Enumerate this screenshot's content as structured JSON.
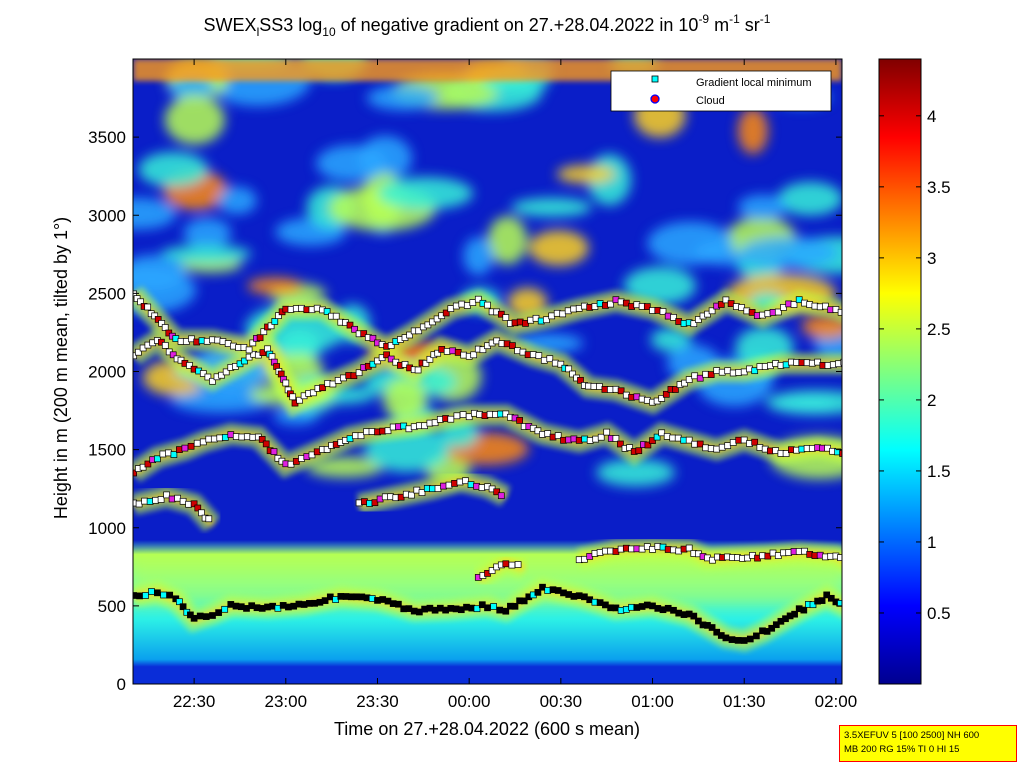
{
  "chart_data": {
    "type": "heatmap",
    "title_parts": {
      "prefix": "SWEX",
      "sub_l": "l",
      "mid": "SS3 log",
      "sub_10": "10",
      "text": " of negative gradient on 27.+28.04.2022 in 10",
      "sup_m9": "-9",
      "unit_m": " m",
      "sup_m1a": "-1",
      "unit_sr": " sr",
      "sup_m1b": "-1"
    },
    "xlabel": "Time on 27.+28.04.2022 (600 s mean)",
    "ylabel": "Height in m (200 m mean, tilted by 1°)",
    "xlim_hours": [
      22.1667,
      26.0333
    ],
    "x_ticks": [
      {
        "value": 22.5,
        "label": "22:30"
      },
      {
        "value": 23.0,
        "label": "23:00"
      },
      {
        "value": 23.5,
        "label": "23:30"
      },
      {
        "value": 24.0,
        "label": "00:00"
      },
      {
        "value": 24.5,
        "label": "00:30"
      },
      {
        "value": 25.0,
        "label": "01:00"
      },
      {
        "value": 25.5,
        "label": "01:30"
      },
      {
        "value": 26.0,
        "label": "02:00"
      }
    ],
    "ylim": [
      0,
      4000
    ],
    "y_ticks": [
      0,
      500,
      1000,
      1500,
      2000,
      2500,
      3000,
      3500
    ],
    "colorbar": {
      "range": [
        0,
        4.4
      ],
      "ticks": [
        "0.5",
        "1",
        "1.5",
        "2",
        "2.5",
        "3",
        "3.5",
        "4"
      ],
      "colormap": "jet"
    },
    "legend": {
      "position": "top-right",
      "entries": [
        {
          "label": "Gradient local minimum",
          "marker": "square",
          "color": "#00ffff"
        },
        {
          "label": "Cloud",
          "marker": "circle",
          "color": "#ff0000",
          "edge": "#0000ff"
        }
      ]
    },
    "layers_m": [
      {
        "name": "boundary",
        "points": [
          [
            22.17,
            560
          ],
          [
            22.3,
            590
          ],
          [
            22.4,
            540
          ],
          [
            22.5,
            410
          ],
          [
            22.6,
            450
          ],
          [
            22.7,
            500
          ],
          [
            22.9,
            490
          ],
          [
            23.1,
            510
          ],
          [
            23.3,
            560
          ],
          [
            23.5,
            540
          ],
          [
            23.7,
            470
          ],
          [
            23.9,
            480
          ],
          [
            24.1,
            500
          ],
          [
            24.2,
            470
          ],
          [
            24.3,
            540
          ],
          [
            24.4,
            610
          ],
          [
            24.6,
            560
          ],
          [
            24.8,
            480
          ],
          [
            25.0,
            500
          ],
          [
            25.2,
            440
          ],
          [
            25.4,
            300
          ],
          [
            25.5,
            280
          ],
          [
            25.6,
            330
          ],
          [
            25.8,
            470
          ],
          [
            25.95,
            560
          ],
          [
            26.1,
            460
          ],
          [
            26.2,
            390
          ]
        ]
      },
      {
        "name": "layer-850",
        "points": [
          [
            24.05,
            670
          ],
          [
            24.2,
            780
          ],
          [
            24.3,
            740
          ]
        ]
      },
      {
        "name": "layer-850b",
        "points": [
          [
            24.6,
            800
          ],
          [
            24.8,
            860
          ],
          [
            25.0,
            870
          ],
          [
            25.2,
            860
          ],
          [
            25.3,
            800
          ],
          [
            25.6,
            820
          ],
          [
            25.8,
            840
          ],
          [
            26.0,
            820
          ],
          [
            26.2,
            680
          ]
        ]
      },
      {
        "name": "layer-1200",
        "points": [
          [
            22.17,
            1150
          ],
          [
            22.35,
            1200
          ],
          [
            22.5,
            1150
          ],
          [
            22.6,
            1020
          ]
        ]
      },
      {
        "name": "layer-1200b",
        "points": [
          [
            23.4,
            1150
          ],
          [
            23.6,
            1200
          ],
          [
            23.8,
            1250
          ],
          [
            23.95,
            1300
          ],
          [
            24.1,
            1260
          ],
          [
            24.2,
            1200
          ]
        ]
      },
      {
        "name": "layer-1450",
        "points": [
          [
            22.17,
            1350
          ],
          [
            22.3,
            1450
          ],
          [
            22.45,
            1500
          ],
          [
            22.55,
            1550
          ],
          [
            22.7,
            1600
          ],
          [
            22.85,
            1580
          ],
          [
            23.0,
            1400
          ],
          [
            23.2,
            1500
          ],
          [
            23.35,
            1580
          ],
          [
            23.5,
            1620
          ],
          [
            23.7,
            1650
          ],
          [
            23.9,
            1700
          ],
          [
            24.0,
            1720
          ],
          [
            24.2,
            1720
          ],
          [
            24.4,
            1600
          ],
          [
            24.6,
            1550
          ],
          [
            24.75,
            1600
          ],
          [
            24.9,
            1480
          ],
          [
            25.05,
            1600
          ],
          [
            25.2,
            1550
          ],
          [
            25.35,
            1500
          ],
          [
            25.5,
            1560
          ],
          [
            25.7,
            1480
          ],
          [
            25.9,
            1510
          ],
          [
            26.2,
            1450
          ]
        ]
      },
      {
        "name": "layer-2000",
        "points": [
          [
            22.17,
            2100
          ],
          [
            22.3,
            2200
          ],
          [
            22.45,
            2050
          ],
          [
            22.6,
            1950
          ],
          [
            22.75,
            2050
          ],
          [
            22.9,
            2150
          ],
          [
            23.05,
            1800
          ],
          [
            23.2,
            1900
          ],
          [
            23.4,
            2000
          ],
          [
            23.55,
            2100
          ],
          [
            23.7,
            2000
          ],
          [
            23.85,
            2150
          ],
          [
            24.0,
            2100
          ],
          [
            24.15,
            2200
          ],
          [
            24.35,
            2100
          ],
          [
            24.5,
            2050
          ],
          [
            24.65,
            1900
          ],
          [
            24.8,
            1880
          ],
          [
            25.0,
            1800
          ],
          [
            25.2,
            1950
          ],
          [
            25.35,
            2000
          ],
          [
            25.5,
            2000
          ],
          [
            25.7,
            2050
          ],
          [
            25.9,
            2050
          ],
          [
            26.1,
            2050
          ],
          [
            26.2,
            2000
          ]
        ]
      },
      {
        "name": "layer-2400",
        "points": [
          [
            22.17,
            2500
          ],
          [
            22.4,
            2200
          ],
          [
            22.6,
            2200
          ],
          [
            22.8,
            2150
          ],
          [
            23.0,
            2400
          ],
          [
            23.2,
            2400
          ],
          [
            23.4,
            2250
          ],
          [
            23.55,
            2150
          ],
          [
            23.7,
            2250
          ],
          [
            23.9,
            2400
          ],
          [
            24.05,
            2450
          ],
          [
            24.25,
            2300
          ],
          [
            24.45,
            2350
          ],
          [
            24.6,
            2400
          ],
          [
            24.8,
            2450
          ],
          [
            25.0,
            2400
          ],
          [
            25.2,
            2300
          ],
          [
            25.4,
            2450
          ],
          [
            25.6,
            2350
          ],
          [
            25.8,
            2450
          ],
          [
            26.0,
            2400
          ],
          [
            26.2,
            2300
          ]
        ]
      }
    ]
  },
  "info_box": {
    "line1": "3.5XEFUV 5 [100 2500] NH 600",
    "line2": "MB 200 RG 15% TI 0 HI 15"
  }
}
